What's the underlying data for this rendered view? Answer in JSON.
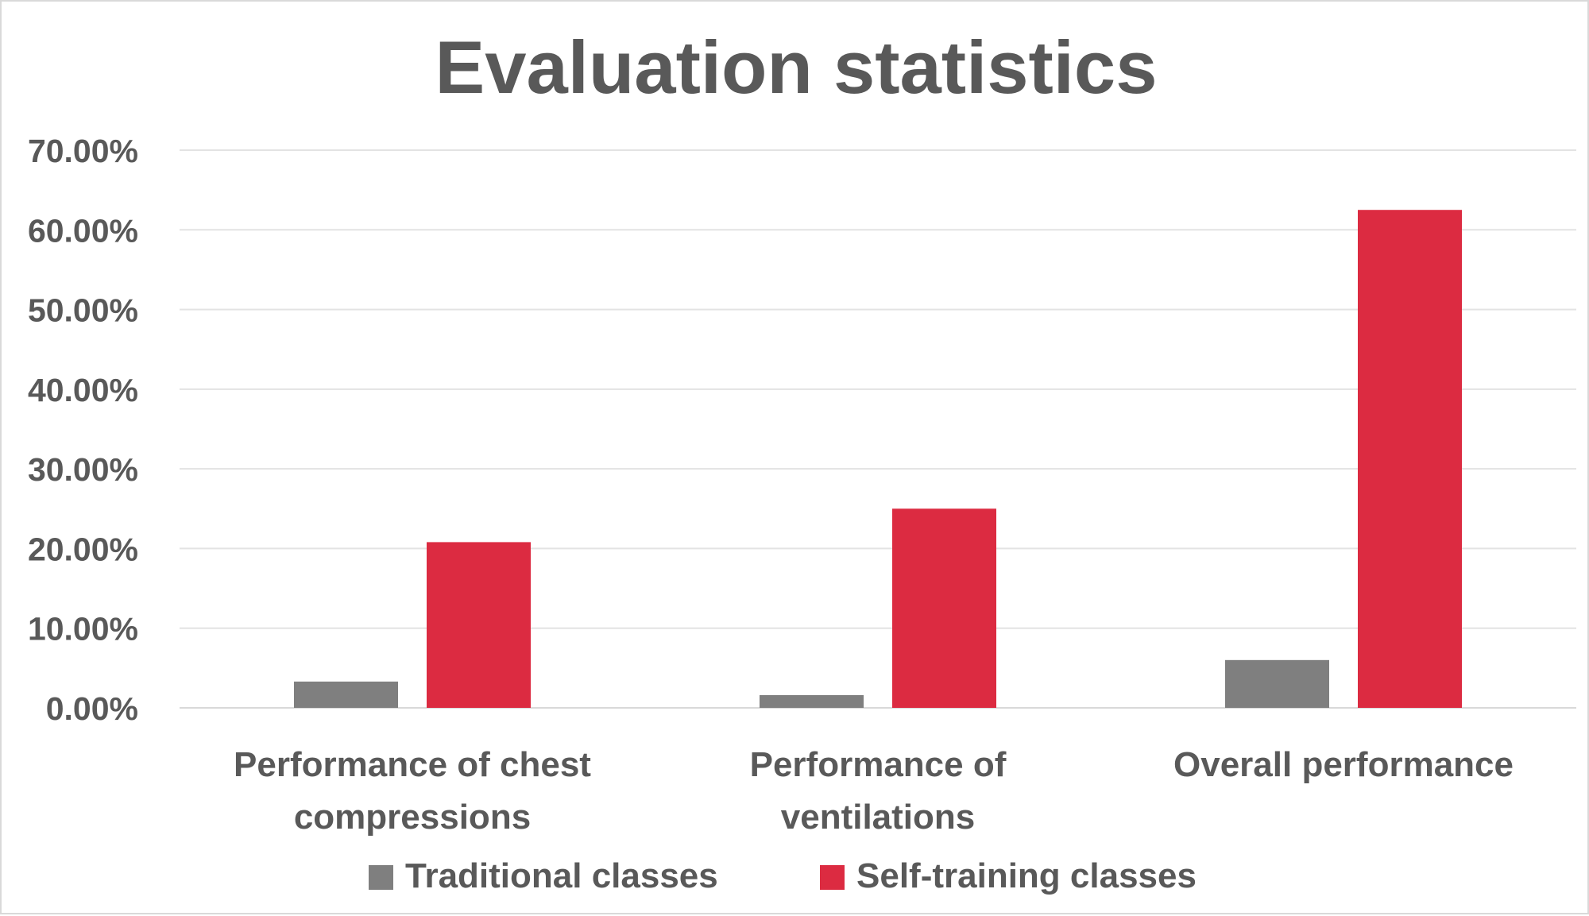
{
  "chart_data": {
    "type": "bar",
    "title": "Evaluation statistics",
    "xlabel": "",
    "ylabel": "",
    "categories": [
      [
        "Performance of chest",
        "compressions"
      ],
      [
        "Performance of",
        "ventilations"
      ],
      [
        "Overall performance"
      ]
    ],
    "series": [
      {
        "name": "Traditional classes",
        "color": "#7f7f7f",
        "values": [
          3.3,
          1.6,
          6.0
        ]
      },
      {
        "name": "Self-training classes",
        "color": "#dc2b41",
        "values": [
          20.8,
          25.0,
          62.5
        ]
      }
    ],
    "yticks": [
      "0.00%",
      "10.00%",
      "20.00%",
      "30.00%",
      "40.00%",
      "50.00%",
      "60.00%",
      "70.00%"
    ],
    "ylim": [
      0,
      70
    ],
    "grid": true,
    "legend_position": "bottom"
  }
}
